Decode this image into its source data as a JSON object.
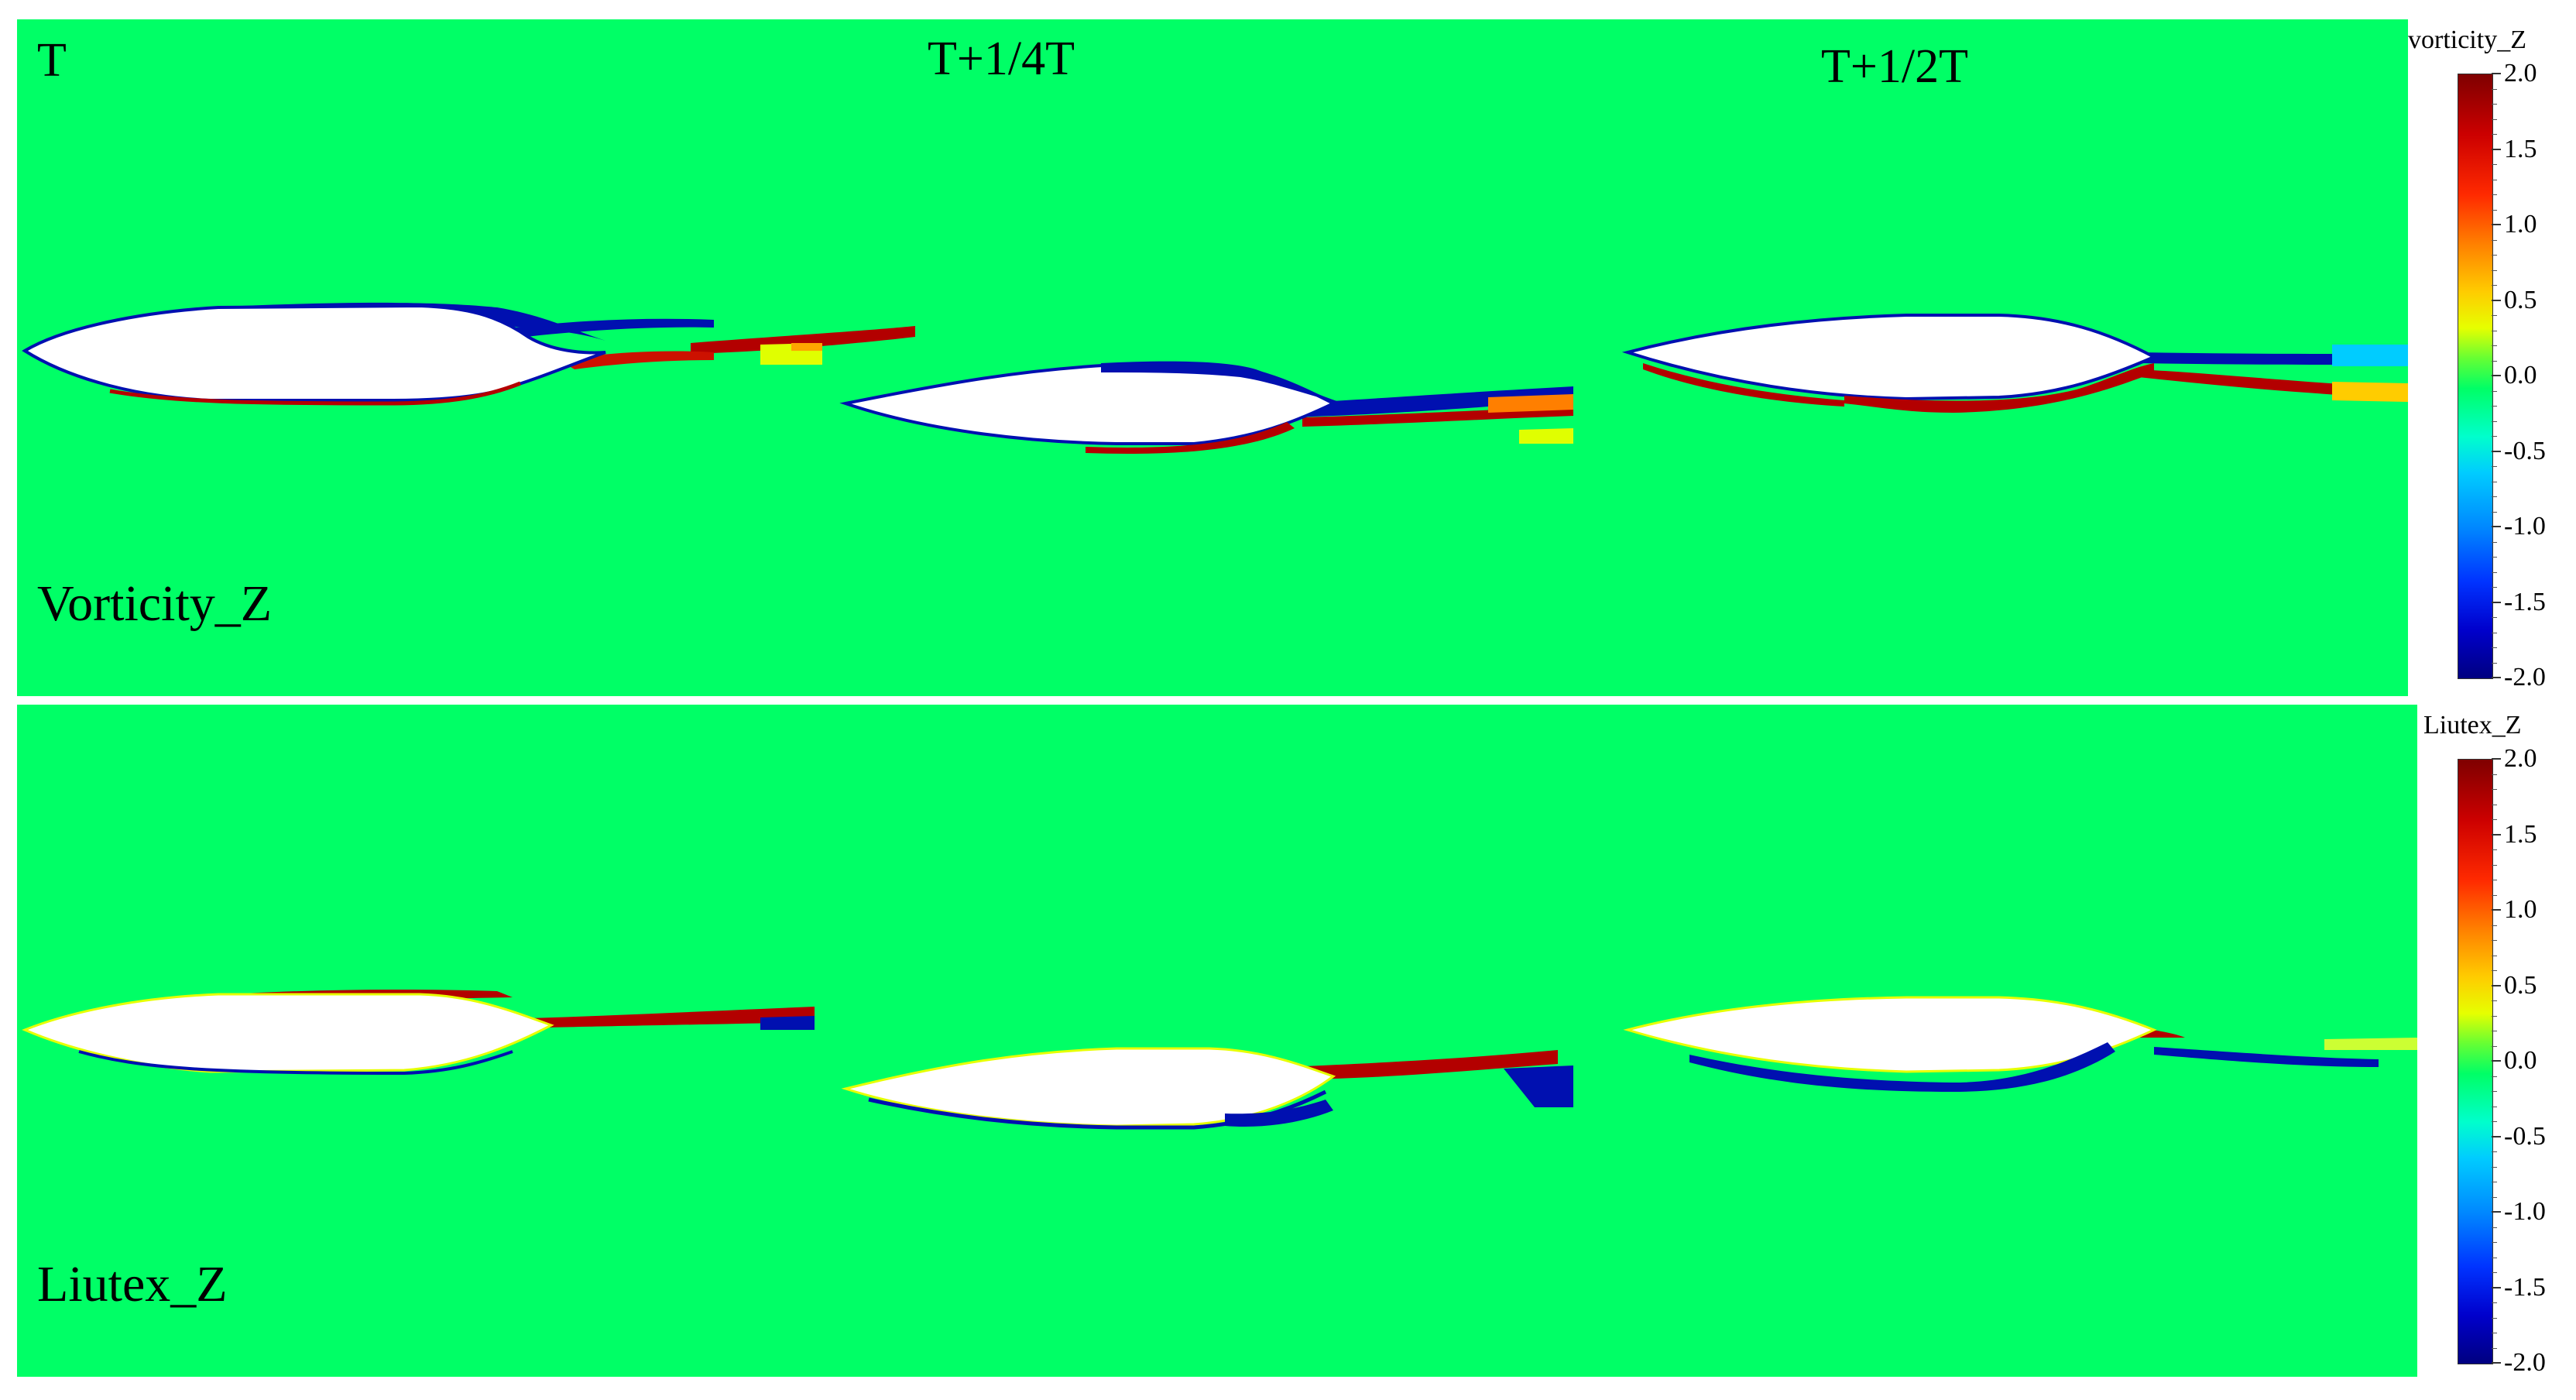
{
  "times": [
    "T",
    "T+1/4T",
    "T+1/2T"
  ],
  "rows": [
    {
      "label": "Vorticity_Z",
      "colorbar_title": "vorticity_Z"
    },
    {
      "label": "Liutex_Z",
      "colorbar_title": "Liutex_Z"
    }
  ],
  "colorbar": {
    "ticks": [
      "2.0",
      "1.5",
      "1.0",
      "0.5",
      "0.0",
      "-0.5",
      "-1.0",
      "-1.5",
      "-2.0"
    ]
  },
  "colors": {
    "background_field": "#00ff66",
    "positive": "#b30000",
    "negative": "#0010b0"
  }
}
